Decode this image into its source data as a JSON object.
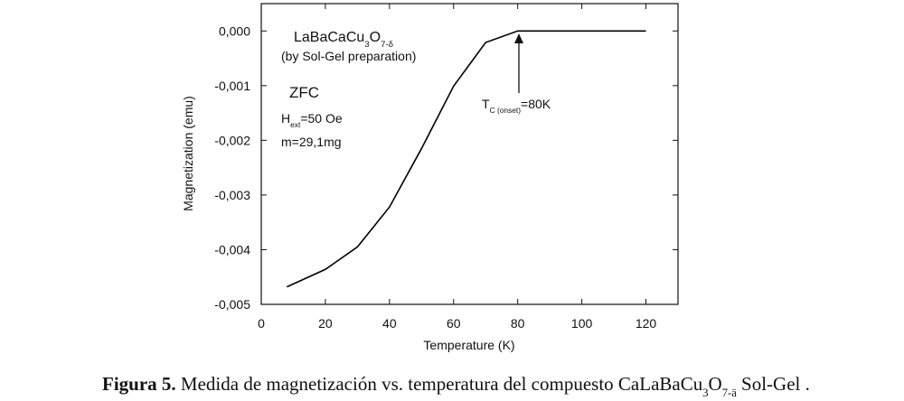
{
  "chart_data": {
    "type": "line",
    "x_label": "Temperature (K)",
    "y_label": "Magnetization (emu)",
    "xlim": [
      0,
      130
    ],
    "ylim": [
      -0.005,
      0.0005
    ],
    "xticks": [
      0,
      20,
      40,
      60,
      80,
      100,
      120
    ],
    "yticks": [
      {
        "value": 0,
        "label": "0,000"
      },
      {
        "value": -0.001,
        "label": "-0,001"
      },
      {
        "value": -0.002,
        "label": "-0,002"
      },
      {
        "value": -0.003,
        "label": "-0,003"
      },
      {
        "value": -0.004,
        "label": "-0,004"
      },
      {
        "value": -0.005,
        "label": "-0,005"
      }
    ],
    "x": [
      8,
      20,
      30,
      40,
      50,
      60,
      70,
      80,
      90,
      100,
      110,
      120
    ],
    "series": [
      {
        "color": "#000000",
        "values": [
          -0.00468,
          -0.00436,
          -0.00395,
          -0.00322,
          -0.00215,
          -0.00101,
          -0.00021,
          0,
          0,
          0,
          0,
          0
        ]
      }
    ],
    "annotations": {
      "compound": [
        {
          "text": "LaBaCaCu"
        },
        {
          "text": "3",
          "sub": true
        },
        {
          "text": "O"
        },
        {
          "text": "7-δ",
          "sub": true
        }
      ],
      "method": "(by Sol-Gel preparation)",
      "mode": "ZFC",
      "field": [
        {
          "text": "H"
        },
        {
          "text": "ext",
          "sub": true
        },
        {
          "text": "=50 Oe"
        }
      ],
      "mass": "m=29,1mg",
      "tc": [
        {
          "text": "T"
        },
        {
          "text": "C (onset)",
          "sub": true
        },
        {
          "text": "=80K"
        }
      ]
    }
  },
  "caption": {
    "label": "Figura 5.",
    "text": [
      {
        "text": " Medida de magnetización vs. temperatura del compuesto CaLaBaCu"
      },
      {
        "text": "3",
        "sub": true
      },
      {
        "text": "O"
      },
      {
        "text": "7-ä",
        "sub": true
      },
      {
        "text": "  Sol-Gel ."
      }
    ]
  }
}
